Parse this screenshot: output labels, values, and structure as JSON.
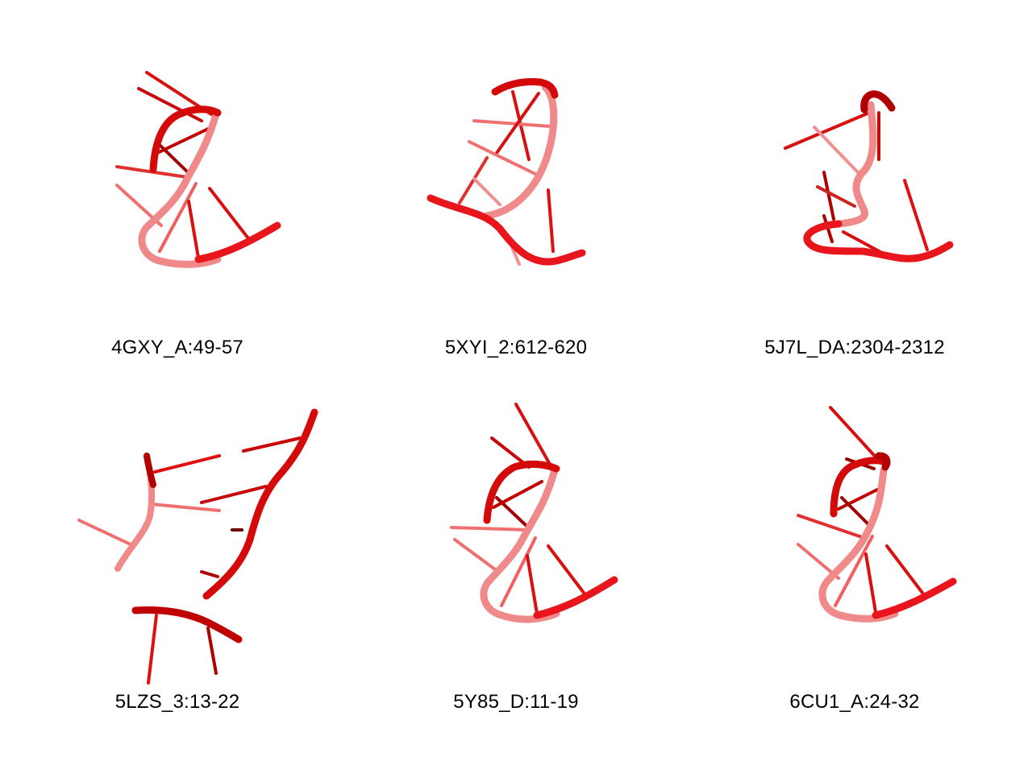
{
  "panels": [
    {
      "label": "4GXY_A:49-57"
    },
    {
      "label": "5XYI_2:612-620"
    },
    {
      "label": "5J7L_DA:2304-2312"
    },
    {
      "label": "5LZS_3:13-22"
    },
    {
      "label": "5Y85_D:11-19"
    },
    {
      "label": "6CU1_A:24-32"
    }
  ],
  "colors": {
    "backbone": "#e8161c",
    "backbone_dark": "#b00000",
    "backbone_light": "#f08080",
    "base": "#e01010",
    "background": "#ffffff"
  },
  "icons": [
    "rna-cartoon-image"
  ]
}
